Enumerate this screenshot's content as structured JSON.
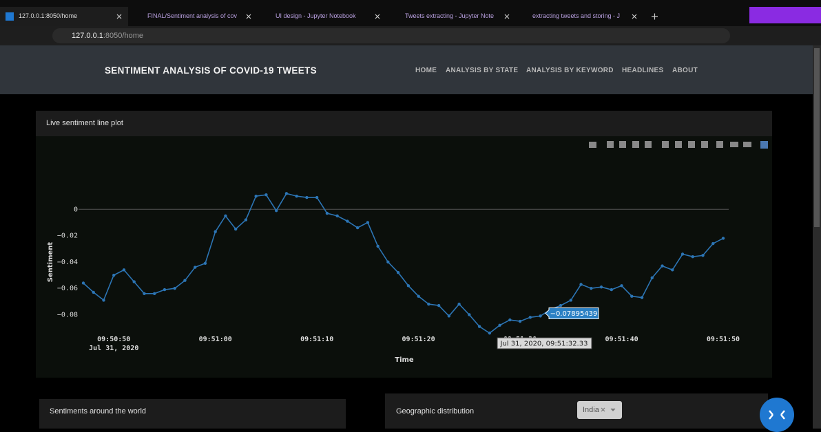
{
  "browser": {
    "tabs": [
      "127.0.0.1:8050/home",
      "FINAL/Sentiment analysis of cov",
      "UI design - Jupyter Notebook",
      "Tweets extracting - Jupyter Note",
      "extracting tweets and storing - J"
    ],
    "url_host": "127.0.0.1",
    "url_rest": ":8050/home"
  },
  "navbar": {
    "title": "SENTIMENT ANALYSIS OF COVID-19 TWEETS",
    "links": [
      "HOME",
      "ANALYSIS BY STATE",
      "ANALYSIS BY KEYWORD",
      "HEADLINES",
      "ABOUT"
    ]
  },
  "cards": {
    "live": "Live sentiment line plot",
    "world": "Sentiments around the world",
    "geo": "Geographic distribution",
    "dropdown": "India"
  },
  "chart_data": {
    "type": "line",
    "x_label": "Time",
    "y_label": "Sentiment",
    "x_date_label": "Jul 31, 2020",
    "x": [
      "09:50:47",
      "09:50:48",
      "09:50:49",
      "09:50:50",
      "09:50:51",
      "09:50:52",
      "09:50:53",
      "09:50:54",
      "09:50:55",
      "09:50:56",
      "09:50:57",
      "09:50:58",
      "09:50:59",
      "09:51:00",
      "09:51:01",
      "09:51:02",
      "09:51:03",
      "09:51:04",
      "09:51:05",
      "09:51:06",
      "09:51:07",
      "09:51:08",
      "09:51:09",
      "09:51:10",
      "09:51:11",
      "09:51:12",
      "09:51:13",
      "09:51:14",
      "09:51:15",
      "09:51:16",
      "09:51:17",
      "09:51:18",
      "09:51:19",
      "09:51:20",
      "09:51:21",
      "09:51:22",
      "09:51:23",
      "09:51:24",
      "09:51:25",
      "09:51:26",
      "09:51:27",
      "09:51:28",
      "09:51:29",
      "09:51:30",
      "09:51:31",
      "09:51:32",
      "09:51:33",
      "09:51:34",
      "09:51:35",
      "09:51:36",
      "09:51:37",
      "09:51:38",
      "09:51:39",
      "09:51:40",
      "09:51:41",
      "09:51:42",
      "09:51:43",
      "09:51:44",
      "09:51:45",
      "09:51:46",
      "09:51:47",
      "09:51:48",
      "09:51:49",
      "09:51:50"
    ],
    "series": [
      {
        "name": "Sentiment",
        "color": "#2c75b5",
        "values": [
          -0.056,
          -0.063,
          -0.069,
          -0.05,
          -0.046,
          -0.055,
          -0.064,
          -0.064,
          -0.061,
          -0.06,
          -0.054,
          -0.044,
          -0.041,
          -0.017,
          -0.005,
          -0.015,
          -0.008,
          0.01,
          0.011,
          -0.001,
          0.012,
          0.01,
          0.009,
          0.009,
          -0.003,
          -0.005,
          -0.009,
          -0.014,
          -0.01,
          -0.028,
          -0.04,
          -0.048,
          -0.058,
          -0.066,
          -0.072,
          -0.073,
          -0.081,
          -0.072,
          -0.08,
          -0.089,
          -0.094,
          -0.088,
          -0.084,
          -0.085,
          -0.082,
          -0.081,
          -0.076,
          -0.073,
          -0.069,
          -0.057,
          -0.06,
          -0.059,
          -0.061,
          -0.058,
          -0.066,
          -0.067,
          -0.052,
          -0.043,
          -0.046,
          -0.034,
          -0.036,
          -0.035,
          -0.026,
          -0.022
        ]
      }
    ],
    "xlim": [
      "09:50:47",
      "09:51:50"
    ],
    "ylim": [
      -0.097,
      0.02
    ],
    "xticks": [
      "09:50:50",
      "09:51:00",
      "09:51:10",
      "09:51:20",
      "09:51:30",
      "09:51:40",
      "09:51:50"
    ],
    "yticks": [
      0,
      {
        "value": -0.02,
        "label": "−0.02"
      },
      {
        "value": -0.04,
        "label": "−0.04"
      },
      {
        "value": -0.06,
        "label": "−0.06"
      },
      {
        "value": -0.08,
        "label": "−0.08"
      }
    ],
    "zeroline": true,
    "grid": false,
    "hover": {
      "value": -0.07895439,
      "value_label": "−0.07895439",
      "x_label": "Jul 31, 2020, 09:51:32.33"
    }
  }
}
